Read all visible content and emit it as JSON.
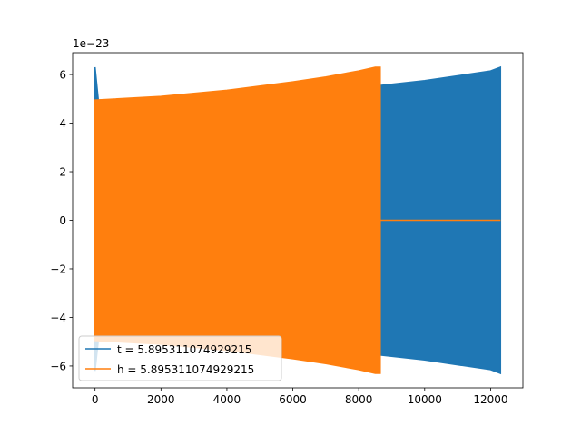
{
  "chart_data": {
    "type": "line",
    "title": "",
    "xlabel": "",
    "ylabel": "",
    "y_offset_label": "1e−23",
    "xlim": [
      -680,
      12980
    ],
    "ylim": [
      -6.9,
      6.9
    ],
    "x_ticks": [
      0,
      2000,
      4000,
      6000,
      8000,
      10000,
      12000
    ],
    "x_tick_labels": [
      "0",
      "2000",
      "4000",
      "6000",
      "8000",
      "10000",
      "12000"
    ],
    "y_ticks": [
      -6,
      -4,
      -2,
      0,
      2,
      4,
      6
    ],
    "y_tick_labels": [
      "−6",
      "−4",
      "−2",
      "0",
      "2",
      "4",
      "6"
    ],
    "grid": false,
    "legend_position": "lower-left",
    "series": [
      {
        "name": "t = 5.895311074929215",
        "color": "#1f77b4",
        "envelope": {
          "x": [
            0,
            100,
            2000,
            4000,
            6000,
            8000,
            8650,
            10000,
            12000,
            12300
          ],
          "upper": [
            6.3,
            4.95,
            5.0,
            5.1,
            5.25,
            5.45,
            5.55,
            5.75,
            6.15,
            6.3
          ],
          "lower": [
            -6.2,
            -4.95,
            -5.0,
            -5.1,
            -5.25,
            -5.45,
            -5.55,
            -5.75,
            -6.15,
            -6.3
          ]
        }
      },
      {
        "name": "h = 5.895311074929215",
        "color": "#ff7f0e",
        "envelope": {
          "x": [
            0,
            2000,
            4000,
            6000,
            7000,
            8000,
            8500,
            8650
          ],
          "upper": [
            4.95,
            5.1,
            5.35,
            5.7,
            5.9,
            6.15,
            6.3,
            6.3
          ],
          "lower": [
            -4.95,
            -5.1,
            -5.35,
            -5.7,
            -5.9,
            -6.15,
            -6.3,
            -6.3
          ]
        },
        "tail": {
          "x": [
            8650,
            12300
          ],
          "y": [
            0,
            0
          ]
        }
      }
    ]
  }
}
